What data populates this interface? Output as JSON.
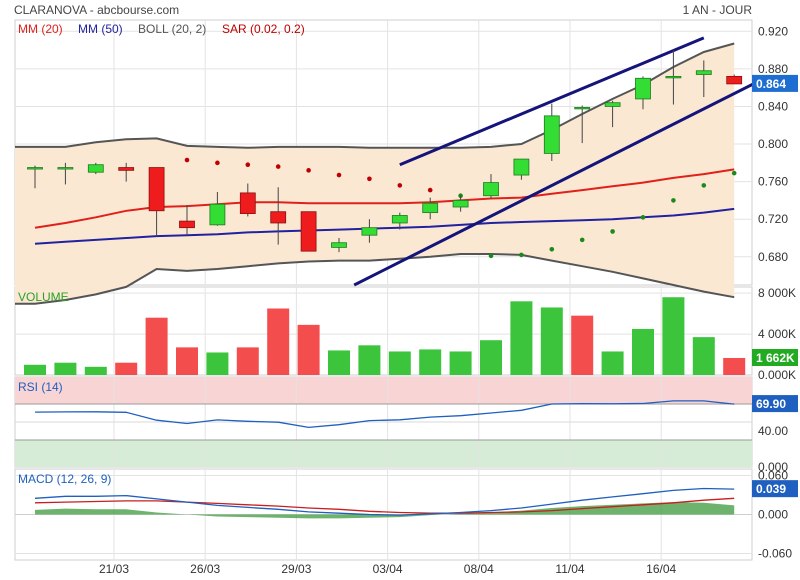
{
  "header": {
    "title": "CLARANOVA - abcbourse.com",
    "period": "1 AN - JOUR"
  },
  "chart_data": [
    {
      "type": "candlestick",
      "panel": "price",
      "legend": [
        {
          "label": "MM (20)",
          "color": "#e0201b"
        },
        {
          "label": "MM (50)",
          "color": "#2222a0"
        },
        {
          "label": "BOLL (20, 2)",
          "color": "#555555"
        },
        {
          "label": "SAR (0.02, 0.2)",
          "color": "#c00000"
        }
      ],
      "ylim": [
        0.65,
        0.932
      ],
      "y_ticks": [
        "0.920",
        "0.880",
        "0.840",
        "0.800",
        "0.760",
        "0.720",
        "0.680"
      ],
      "y_tick_values": [
        0.92,
        0.88,
        0.84,
        0.8,
        0.76,
        0.72,
        0.68
      ],
      "x_tick_labels": [
        "21/03",
        "26/03",
        "29/03",
        "03/04",
        "08/04",
        "11/04",
        "16/04"
      ],
      "x_tick_index": [
        3,
        6,
        9,
        12,
        15,
        18,
        21
      ],
      "last_value": "0.864",
      "candles": [
        {
          "o": 0.775,
          "h": 0.777,
          "l": 0.753,
          "c": 0.775
        },
        {
          "o": 0.775,
          "h": 0.78,
          "l": 0.757,
          "c": 0.775
        },
        {
          "o": 0.77,
          "h": 0.78,
          "l": 0.768,
          "c": 0.778
        },
        {
          "o": 0.775,
          "h": 0.78,
          "l": 0.76,
          "c": 0.772
        },
        {
          "o": 0.775,
          "h": 0.775,
          "l": 0.702,
          "c": 0.729
        },
        {
          "o": 0.718,
          "h": 0.735,
          "l": 0.703,
          "c": 0.711
        },
        {
          "o": 0.714,
          "h": 0.749,
          "l": 0.713,
          "c": 0.736
        },
        {
          "o": 0.748,
          "h": 0.758,
          "l": 0.723,
          "c": 0.726
        },
        {
          "o": 0.728,
          "h": 0.754,
          "l": 0.693,
          "c": 0.716
        },
        {
          "o": 0.728,
          "h": 0.728,
          "l": 0.688,
          "c": 0.686
        },
        {
          "o": 0.69,
          "h": 0.7,
          "l": 0.685,
          "c": 0.695
        },
        {
          "o": 0.703,
          "h": 0.72,
          "l": 0.695,
          "c": 0.711
        },
        {
          "o": 0.716,
          "h": 0.727,
          "l": 0.709,
          "c": 0.724
        },
        {
          "o": 0.727,
          "h": 0.743,
          "l": 0.72,
          "c": 0.737
        },
        {
          "o": 0.733,
          "h": 0.745,
          "l": 0.728,
          "c": 0.74
        },
        {
          "o": 0.745,
          "h": 0.768,
          "l": 0.742,
          "c": 0.759
        },
        {
          "o": 0.767,
          "h": 0.784,
          "l": 0.762,
          "c": 0.784
        },
        {
          "o": 0.79,
          "h": 0.843,
          "l": 0.782,
          "c": 0.83
        },
        {
          "o": 0.839,
          "h": 0.841,
          "l": 0.801,
          "c": 0.839
        },
        {
          "o": 0.84,
          "h": 0.846,
          "l": 0.818,
          "c": 0.844
        },
        {
          "o": 0.848,
          "h": 0.872,
          "l": 0.837,
          "c": 0.87
        },
        {
          "o": 0.872,
          "h": 0.9,
          "l": 0.842,
          "c": 0.872
        },
        {
          "o": 0.874,
          "h": 0.889,
          "l": 0.85,
          "c": 0.878
        },
        {
          "o": 0.872,
          "h": 0.874,
          "l": 0.864,
          "c": 0.864
        }
      ],
      "mm20": [
        0.711,
        0.716,
        0.722,
        0.729,
        0.733,
        0.734,
        0.736,
        0.738,
        0.738,
        0.737,
        0.737,
        0.737,
        0.737,
        0.738,
        0.74,
        0.742,
        0.743,
        0.747,
        0.751,
        0.755,
        0.759,
        0.764,
        0.768,
        0.773
      ],
      "mm50": [
        0.694,
        0.696,
        0.698,
        0.7,
        0.702,
        0.703,
        0.704,
        0.706,
        0.707,
        0.708,
        0.709,
        0.71,
        0.711,
        0.712,
        0.714,
        0.716,
        0.717,
        0.718,
        0.719,
        0.72,
        0.722,
        0.724,
        0.727,
        0.731
      ],
      "boll_upper": [
        0.797,
        0.797,
        0.802,
        0.805,
        0.806,
        0.798,
        0.797,
        0.796,
        0.797,
        0.797,
        0.797,
        0.796,
        0.796,
        0.796,
        0.796,
        0.797,
        0.8,
        0.815,
        0.832,
        0.848,
        0.863,
        0.882,
        0.898,
        0.907
      ],
      "boll_lower": [
        0.63,
        0.634,
        0.64,
        0.648,
        0.667,
        0.665,
        0.667,
        0.67,
        0.673,
        0.675,
        0.676,
        0.676,
        0.678,
        0.68,
        0.683,
        0.683,
        0.682,
        0.676,
        0.67,
        0.664,
        0.657,
        0.65,
        0.643,
        0.637
      ],
      "sar": [
        null,
        null,
        null,
        null,
        null,
        0.783,
        0.78,
        0.778,
        0.776,
        0.772,
        0.767,
        0.763,
        0.756,
        0.751,
        0.745,
        0.681,
        0.682,
        0.688,
        0.698,
        0.707,
        0.722,
        0.74,
        0.756,
        0.769
      ],
      "trend_upper": [
        [
          12.0,
          0.778
        ],
        [
          22.0,
          0.913
        ]
      ],
      "trend_lower": [
        [
          10.5,
          0.65
        ],
        [
          24.0,
          0.87
        ]
      ]
    },
    {
      "type": "bar",
      "panel": "volume",
      "title": "VOLUME",
      "ylim": [
        0,
        8600
      ],
      "y_ticks": [
        "8 000K",
        "4 000K",
        "0.000K"
      ],
      "y_tick_values": [
        8000,
        4000,
        0
      ],
      "last_value": "1 662K",
      "values": [
        1000,
        1200,
        800,
        1200,
        5600,
        2700,
        2200,
        2700,
        6500,
        4900,
        2400,
        2900,
        2300,
        2500,
        2300,
        3400,
        7200,
        6600,
        5800,
        2300,
        4500,
        7600,
        3700,
        1662
      ],
      "direction": [
        "up",
        "up",
        "up",
        "down",
        "down",
        "down",
        "up",
        "down",
        "down",
        "down",
        "up",
        "up",
        "up",
        "up",
        "up",
        "up",
        "up",
        "up",
        "down",
        "up",
        "up",
        "up",
        "up",
        "down"
      ]
    },
    {
      "type": "line",
      "panel": "rsi",
      "title": "RSI (14)",
      "ylim": [
        0,
        100
      ],
      "y_ticks": [
        "40.00",
        "0.000"
      ],
      "y_tick_values": [
        40,
        0
      ],
      "last_value": "69.90",
      "values": [
        61.0,
        61.2,
        61.3,
        60.8,
        52.0,
        48.3,
        52.3,
        50.8,
        49.8,
        44.0,
        47.0,
        51.5,
        52.5,
        55.5,
        57.0,
        60.0,
        63.0,
        70.0,
        70.3,
        70.2,
        70.6,
        73.5,
        73.4,
        69.9
      ]
    },
    {
      "type": "line",
      "panel": "macd",
      "title": "MACD (12, 26, 9)",
      "ylim": [
        -0.07,
        0.07
      ],
      "y_ticks": [
        "0.060",
        "0.000",
        "-0.060"
      ],
      "y_tick_values": [
        0.06,
        0,
        -0.06
      ],
      "last_value": "0.039",
      "macd": [
        0.025,
        0.028,
        0.028,
        0.029,
        0.024,
        0.019,
        0.014,
        0.011,
        0.008,
        0.004,
        0.002,
        0.0,
        -0.001,
        0.001,
        0.003,
        0.006,
        0.01,
        0.016,
        0.022,
        0.027,
        0.032,
        0.037,
        0.04,
        0.039
      ],
      "signal": [
        0.018,
        0.019,
        0.02,
        0.021,
        0.021,
        0.019,
        0.017,
        0.015,
        0.013,
        0.01,
        0.008,
        0.005,
        0.003,
        0.002,
        0.002,
        0.003,
        0.004,
        0.006,
        0.009,
        0.012,
        0.015,
        0.018,
        0.022,
        0.025
      ],
      "histogram": [
        0.007,
        0.009,
        0.008,
        0.008,
        0.003,
        0.0,
        -0.003,
        -0.004,
        -0.005,
        -0.006,
        -0.006,
        -0.005,
        -0.004,
        -0.001,
        0.001,
        0.003,
        0.006,
        0.01,
        0.013,
        0.015,
        0.017,
        0.019,
        0.018,
        0.014
      ]
    }
  ]
}
